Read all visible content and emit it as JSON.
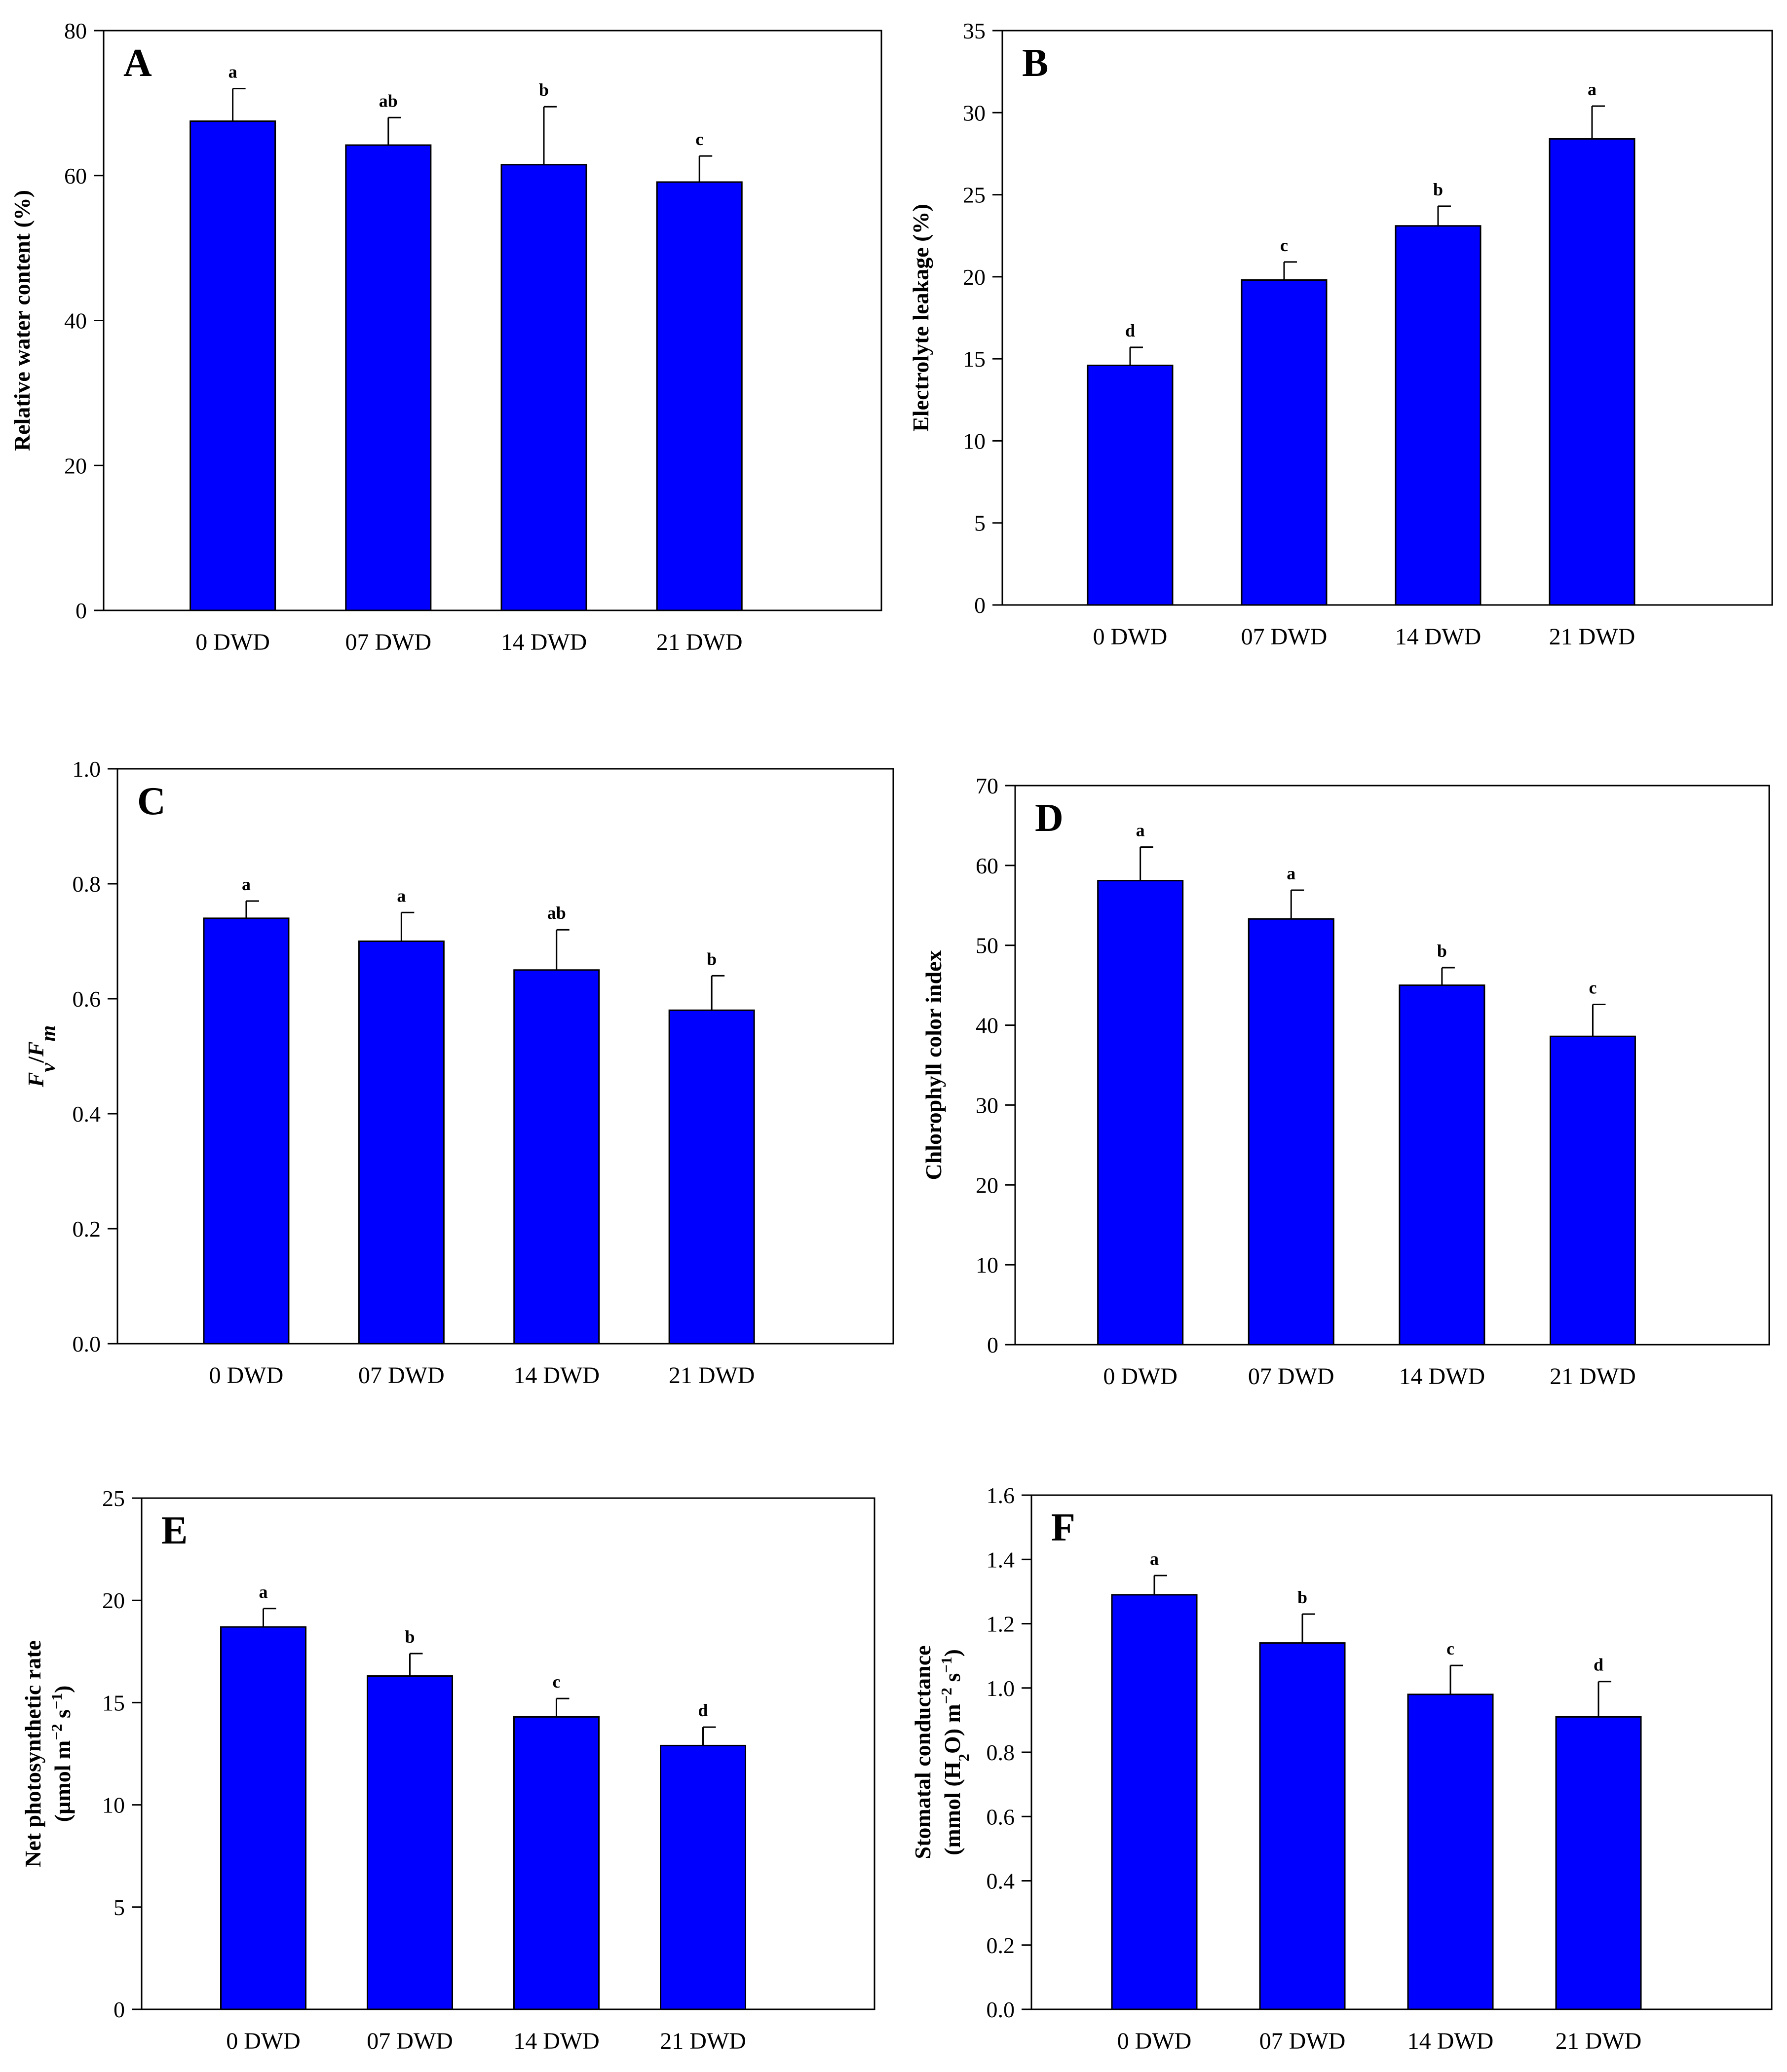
{
  "figure": {
    "chart_data": [
      {
        "panel": "A",
        "type": "bar",
        "categories": [
          "0 DWD",
          "07 DWD",
          "14 DWD",
          "21 DWD"
        ],
        "values": [
          67.5,
          64.2,
          61.5,
          59.1
        ],
        "errors": [
          4.5,
          3.8,
          8.0,
          3.6
        ],
        "letters": [
          "a",
          "ab",
          "b",
          "c"
        ],
        "ylabel_parts": [
          {
            "t": "Relative water content (%)"
          }
        ],
        "ylim": [
          0,
          80
        ],
        "yticks": [
          0,
          20,
          40,
          60,
          80
        ],
        "tick_format": "int",
        "color": "#0000ff"
      },
      {
        "panel": "B",
        "type": "bar",
        "categories": [
          "0 DWD",
          "07 DWD",
          "14 DWD",
          "21 DWD"
        ],
        "values": [
          14.6,
          19.8,
          23.1,
          28.4
        ],
        "errors": [
          1.1,
          1.1,
          1.2,
          2.0
        ],
        "letters": [
          "d",
          "c",
          "b",
          "a"
        ],
        "ylabel_parts": [
          {
            "t": "Electrolyte leakage (%)"
          }
        ],
        "ylim": [
          0,
          35
        ],
        "yticks": [
          0,
          5,
          10,
          15,
          20,
          25,
          30,
          35
        ],
        "tick_format": "int",
        "color": "#0000ff"
      },
      {
        "panel": "C",
        "type": "bar",
        "categories": [
          "0 DWD",
          "07 DWD",
          "14 DWD",
          "21 DWD"
        ],
        "values": [
          0.74,
          0.7,
          0.65,
          0.58
        ],
        "errors": [
          0.03,
          0.05,
          0.07,
          0.06
        ],
        "letters": [
          "a",
          "a",
          "ab",
          "b"
        ],
        "ylabel_parts": [
          {
            "t": "F",
            "i": true
          },
          {
            "t": "v",
            "i": true,
            "sub": true
          },
          {
            "t": "/"
          },
          {
            "t": "F",
            "i": true
          },
          {
            "t": "m",
            "i": true,
            "sub": true
          }
        ],
        "ylim": [
          0,
          1.0
        ],
        "yticks": [
          0.0,
          0.2,
          0.4,
          0.6,
          0.8,
          1.0
        ],
        "tick_format": "1dp",
        "color": "#0000ff"
      },
      {
        "panel": "D",
        "type": "bar",
        "categories": [
          "0 DWD",
          "07 DWD",
          "14 DWD",
          "21 DWD"
        ],
        "values": [
          58.1,
          53.3,
          45.0,
          38.6
        ],
        "errors": [
          4.2,
          3.6,
          2.2,
          4.0
        ],
        "letters": [
          "a",
          "a",
          "b",
          "c"
        ],
        "ylabel_parts": [
          {
            "t": "Chlorophyll color index"
          }
        ],
        "ylim": [
          0,
          70
        ],
        "yticks": [
          0,
          10,
          20,
          30,
          40,
          50,
          60,
          70
        ],
        "tick_format": "int",
        "color": "#0000ff"
      },
      {
        "panel": "E",
        "type": "bar",
        "categories": [
          "0 DWD",
          "07 DWD",
          "14 DWD",
          "21 DWD"
        ],
        "values": [
          18.7,
          16.3,
          14.3,
          12.9
        ],
        "errors": [
          0.9,
          1.1,
          0.9,
          0.9
        ],
        "letters": [
          "a",
          "b",
          "c",
          "d"
        ],
        "ylabel_parts": [
          {
            "t": "Net photosynthetic rate"
          }
        ],
        "ylabel2_parts": [
          {
            "t": "(µmol m"
          },
          {
            "t": "−2",
            "sup": true
          },
          {
            "t": " s"
          },
          {
            "t": "−1",
            "sup": true
          },
          {
            "t": ")"
          }
        ],
        "ylim": [
          0,
          25
        ],
        "yticks": [
          0,
          5,
          10,
          15,
          20,
          25
        ],
        "tick_format": "int",
        "color": "#0000ff"
      },
      {
        "panel": "F",
        "type": "bar",
        "categories": [
          "0 DWD",
          "07 DWD",
          "14 DWD",
          "21 DWD"
        ],
        "values": [
          1.29,
          1.14,
          0.98,
          0.91
        ],
        "errors": [
          0.06,
          0.09,
          0.09,
          0.11
        ],
        "letters": [
          "a",
          "b",
          "c",
          "d"
        ],
        "ylabel_parts": [
          {
            "t": "Stomatal conductance"
          }
        ],
        "ylabel2_parts": [
          {
            "t": "(mmol (H"
          },
          {
            "t": "2",
            "sub": true
          },
          {
            "t": "O) m"
          },
          {
            "t": "−2",
            "sup": true
          },
          {
            "t": " s"
          },
          {
            "t": "−1",
            "sup": true
          },
          {
            "t": ")"
          }
        ],
        "ylim": [
          0,
          1.6
        ],
        "yticks": [
          0.0,
          0.2,
          0.4,
          0.6,
          0.8,
          1.0,
          1.2,
          1.4,
          1.6
        ],
        "tick_format": "1dp",
        "color": "#0000ff"
      }
    ]
  }
}
